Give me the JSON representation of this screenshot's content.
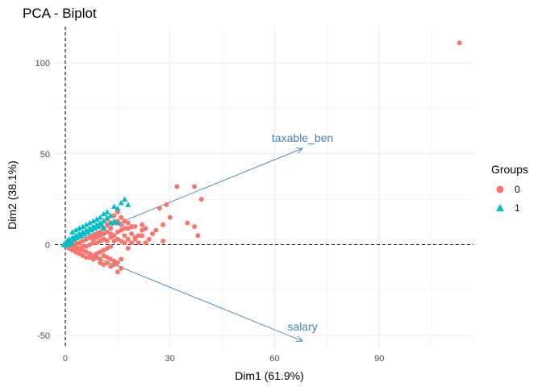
{
  "chart_data": {
    "type": "scatter",
    "title": "PCA - Biplot",
    "xlabel": "Dim1 (61.9%)",
    "ylabel": "Dim2 (38.1%)",
    "xlim": [
      -3,
      117
    ],
    "ylim": [
      -57,
      120
    ],
    "x_ticks": [
      0,
      30,
      60,
      90
    ],
    "y_ticks": [
      -50,
      0,
      50,
      100
    ],
    "x_tick_labels": [
      "0",
      "30",
      "60",
      "90"
    ],
    "y_tick_labels": [
      "-50",
      "0",
      "50",
      "100"
    ],
    "grid": true,
    "reference_lines": {
      "x": 0,
      "y": 0,
      "style": "dashed"
    },
    "legend": {
      "title": "Groups",
      "position": "right",
      "entries": [
        {
          "label": "0",
          "shape": "circle",
          "color": "#F8766D"
        },
        {
          "label": "1",
          "shape": "triangle",
          "color": "#00BFC4"
        }
      ]
    },
    "variable_arrows": [
      {
        "label": "taxable_ben",
        "x": 68,
        "y": 53,
        "color": "#4682B4"
      },
      {
        "label": "salary",
        "x": 68,
        "y": -53,
        "color": "#4682B4"
      }
    ],
    "series": [
      {
        "name": "0",
        "color": "#F8766D",
        "shape": "circle",
        "points": [
          [
            113,
            111
          ],
          [
            32,
            32
          ],
          [
            37,
            32
          ],
          [
            39,
            25
          ],
          [
            29,
            22
          ],
          [
            27,
            20
          ],
          [
            30,
            15
          ],
          [
            35,
            12
          ],
          [
            22,
            11
          ],
          [
            20,
            10
          ],
          [
            23,
            9
          ],
          [
            26,
            8
          ],
          [
            28,
            11
          ],
          [
            37,
            10
          ],
          [
            38,
            5
          ],
          [
            28,
            2
          ],
          [
            21,
            1
          ],
          [
            22,
            8
          ],
          [
            25,
            6
          ],
          [
            18,
            9
          ],
          [
            17,
            13
          ],
          [
            16,
            15
          ],
          [
            15,
            18
          ],
          [
            14,
            16
          ],
          [
            13,
            12
          ],
          [
            12,
            14
          ],
          [
            11,
            9
          ],
          [
            10,
            7
          ],
          [
            9,
            6
          ],
          [
            8,
            5
          ],
          [
            7,
            4
          ],
          [
            6,
            3
          ],
          [
            5,
            2
          ],
          [
            4,
            1
          ],
          [
            3,
            0.5
          ],
          [
            2,
            0.3
          ],
          [
            1,
            0
          ],
          [
            0.5,
            -0.5
          ],
          [
            16,
            8
          ],
          [
            17,
            5
          ],
          [
            18,
            3
          ],
          [
            19,
            6
          ],
          [
            20,
            4
          ],
          [
            15,
            3
          ],
          [
            14,
            5
          ],
          [
            13,
            4
          ],
          [
            12,
            2
          ],
          [
            11,
            3
          ],
          [
            10,
            2
          ],
          [
            9,
            1
          ],
          [
            8,
            1
          ],
          [
            7,
            0
          ],
          [
            6,
            -1
          ],
          [
            5,
            -1
          ],
          [
            4,
            -2
          ],
          [
            3,
            -1
          ],
          [
            2,
            -1
          ],
          [
            13,
            -1
          ],
          [
            12,
            -2
          ],
          [
            11,
            -3
          ],
          [
            10,
            -4
          ],
          [
            9,
            -5
          ],
          [
            8,
            -6
          ],
          [
            7,
            -5
          ],
          [
            6,
            -4
          ],
          [
            5,
            -3
          ],
          [
            4,
            -3
          ],
          [
            3,
            -2
          ],
          [
            11,
            -6
          ],
          [
            12,
            -7
          ],
          [
            13,
            -8
          ],
          [
            14,
            -9
          ],
          [
            15,
            -10
          ],
          [
            16,
            -8
          ],
          [
            10,
            -8
          ],
          [
            9,
            -7
          ],
          [
            8,
            -8
          ],
          [
            7,
            -7
          ],
          [
            15,
            -15
          ],
          [
            16,
            -13
          ],
          [
            13,
            -12
          ],
          [
            14,
            -11
          ],
          [
            12,
            -10
          ],
          [
            11,
            -11
          ],
          [
            10,
            -10
          ],
          [
            6,
            -7
          ],
          [
            5,
            -6
          ],
          [
            4,
            -5
          ],
          [
            3,
            -4
          ],
          [
            2,
            -3
          ],
          [
            1,
            -2
          ],
          [
            14,
            2
          ],
          [
            15,
            7
          ],
          [
            16,
            11
          ],
          [
            13,
            9
          ],
          [
            12,
            7
          ],
          [
            11,
            6
          ],
          [
            10,
            5
          ],
          [
            9,
            4
          ],
          [
            8,
            3
          ],
          [
            17,
            1
          ],
          [
            18,
            -2
          ],
          [
            19,
            1
          ],
          [
            20,
            3
          ],
          [
            21,
            5
          ],
          [
            16,
            2
          ],
          [
            17,
            9
          ],
          [
            14,
            12
          ],
          [
            15,
            13
          ],
          [
            12,
            11
          ],
          [
            13,
            6
          ],
          [
            24,
            3
          ],
          [
            22,
            5
          ],
          [
            23,
            1
          ],
          [
            19,
            10
          ],
          [
            18,
            12
          ]
        ]
      },
      {
        "name": "1",
        "color": "#00BFC4",
        "shape": "triangle",
        "points": [
          [
            17,
            25
          ],
          [
            16,
            23
          ],
          [
            18,
            22
          ],
          [
            14,
            21
          ],
          [
            15,
            20
          ],
          [
            12,
            18
          ],
          [
            11,
            17
          ],
          [
            13,
            16
          ],
          [
            10,
            15
          ],
          [
            9,
            14
          ],
          [
            8,
            13
          ],
          [
            7,
            12
          ],
          [
            6,
            11
          ],
          [
            5,
            10
          ],
          [
            4,
            9
          ],
          [
            3,
            8
          ],
          [
            2,
            7
          ],
          [
            12,
            15
          ],
          [
            11,
            13
          ],
          [
            10,
            12
          ],
          [
            9,
            11
          ],
          [
            8,
            10
          ],
          [
            7,
            9
          ],
          [
            6,
            8
          ],
          [
            5,
            7
          ],
          [
            4,
            6
          ],
          [
            3,
            5
          ],
          [
            2,
            4
          ],
          [
            1,
            3
          ],
          [
            0.5,
            2
          ],
          [
            0,
            1
          ],
          [
            0.3,
            0.5
          ],
          [
            1.5,
            2
          ],
          [
            2.5,
            3
          ],
          [
            3.5,
            4
          ],
          [
            4.5,
            5
          ],
          [
            5.5,
            6
          ],
          [
            6.5,
            7
          ],
          [
            7.5,
            8
          ],
          [
            8.5,
            9
          ],
          [
            9.5,
            10
          ],
          [
            10.5,
            11
          ],
          [
            13,
            12
          ],
          [
            14,
            13
          ],
          [
            15,
            12
          ],
          [
            11,
            9
          ],
          [
            0,
            0
          ],
          [
            0.8,
            0.3
          ],
          [
            1.2,
            1.5
          ],
          [
            1.8,
            0.8
          ],
          [
            -0.5,
            0
          ],
          [
            0.2,
            -0.3
          ]
        ]
      }
    ]
  }
}
